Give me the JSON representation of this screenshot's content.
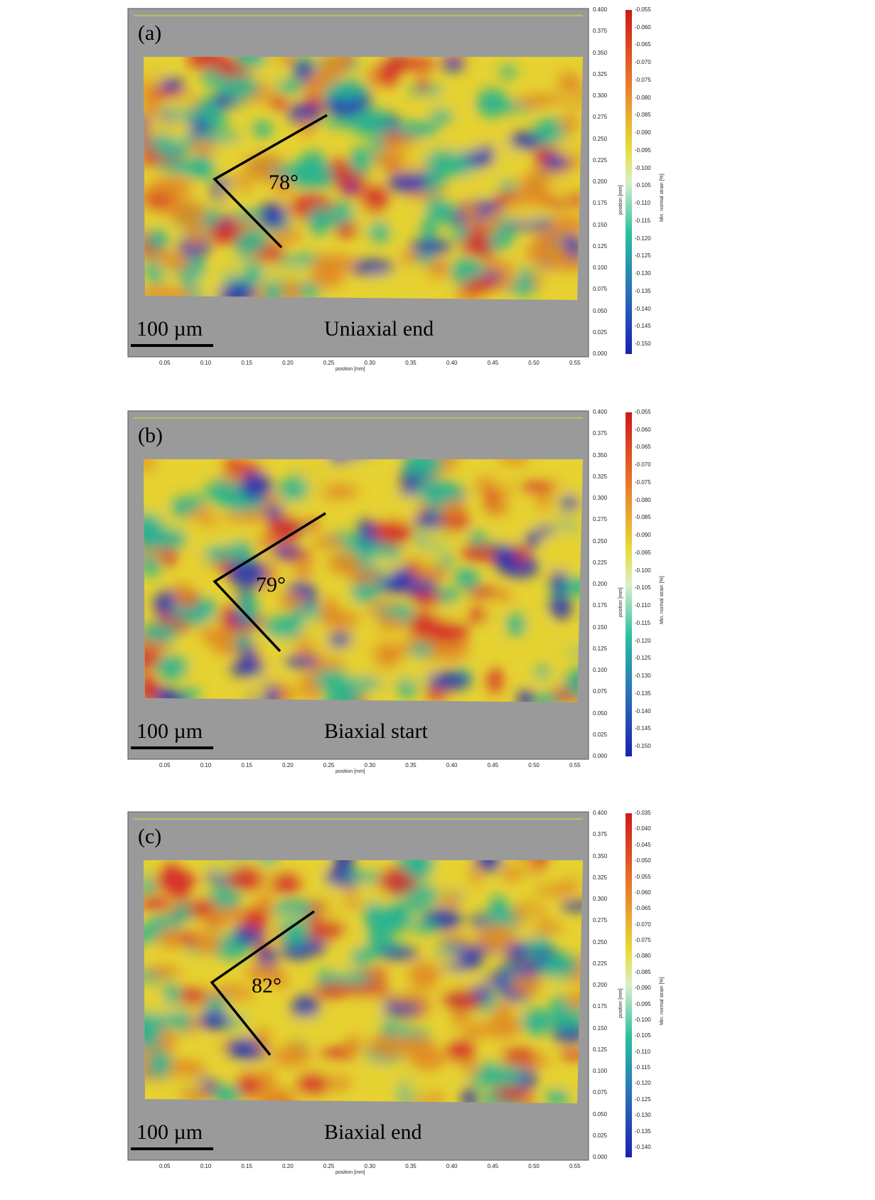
{
  "figure": {
    "panels": [
      {
        "id": "a",
        "label": "(a)",
        "angle_label": "78°",
        "caption": "Uniaxial end",
        "scale_bar": "100 µm",
        "y_axis_title": "position [mm]",
        "x_axis_title": "position [mm]",
        "y_ticks": [
          "0.400",
          "0.375",
          "0.350",
          "0.325",
          "0.300",
          "0.275",
          "0.250",
          "0.225",
          "0.200",
          "0.175",
          "0.150",
          "0.125",
          "0.100",
          "0.075",
          "0.050",
          "0.025",
          "0.000"
        ],
        "x_ticks": [
          "0.05",
          "0.10",
          "0.15",
          "0.20",
          "0.25",
          "0.30",
          "0.35",
          "0.40",
          "0.45",
          "0.50",
          "0.55"
        ],
        "colorbar_title": "Min. normal strain [%]",
        "colorbar_ticks": [
          "-0.055",
          "-0.060",
          "-0.065",
          "-0.070",
          "-0.075",
          "-0.080",
          "-0.085",
          "-0.090",
          "-0.095",
          "-0.100",
          "-0.105",
          "-0.110",
          "-0.115",
          "-0.120",
          "-0.125",
          "-0.130",
          "-0.135",
          "-0.140",
          "-0.145",
          "-0.150"
        ]
      },
      {
        "id": "b",
        "label": "(b)",
        "angle_label": "79°",
        "caption": "Biaxial start",
        "scale_bar": "100 µm",
        "y_axis_title": "position [mm]",
        "x_axis_title": "position [mm]",
        "y_ticks": [
          "0.400",
          "0.375",
          "0.350",
          "0.325",
          "0.300",
          "0.275",
          "0.250",
          "0.225",
          "0.200",
          "0.175",
          "0.150",
          "0.125",
          "0.100",
          "0.075",
          "0.050",
          "0.025",
          "0.000"
        ],
        "x_ticks": [
          "0.05",
          "0.10",
          "0.15",
          "0.20",
          "0.25",
          "0.30",
          "0.35",
          "0.40",
          "0.45",
          "0.50",
          "0.55"
        ],
        "colorbar_title": "Min. normal strain [%]",
        "colorbar_ticks": [
          "-0.055",
          "-0.060",
          "-0.065",
          "-0.070",
          "-0.075",
          "-0.080",
          "-0.085",
          "-0.090",
          "-0.095",
          "-0.100",
          "-0.105",
          "-0.110",
          "-0.115",
          "-0.120",
          "-0.125",
          "-0.130",
          "-0.135",
          "-0.140",
          "-0.145",
          "-0.150"
        ]
      },
      {
        "id": "c",
        "label": "(c)",
        "angle_label": "82°",
        "caption": "Biaxial end",
        "scale_bar": "100 µm",
        "y_axis_title": "position [mm]",
        "x_axis_title": "position [mm]",
        "y_ticks": [
          "0.400",
          "0.375",
          "0.350",
          "0.325",
          "0.300",
          "0.275",
          "0.250",
          "0.225",
          "0.200",
          "0.175",
          "0.150",
          "0.125",
          "0.100",
          "0.075",
          "0.050",
          "0.025",
          "0.000"
        ],
        "x_ticks": [
          "0.05",
          "0.10",
          "0.15",
          "0.20",
          "0.25",
          "0.30",
          "0.35",
          "0.40",
          "0.45",
          "0.50",
          "0.55"
        ],
        "colorbar_title": "Min. normal strain [%]",
        "colorbar_ticks": [
          "-0.035",
          "-0.040",
          "-0.045",
          "-0.050",
          "-0.055",
          "-0.060",
          "-0.065",
          "-0.070",
          "-0.075",
          "-0.080",
          "-0.085",
          "-0.090",
          "-0.095",
          "-0.100",
          "-0.105",
          "-0.110",
          "-0.115",
          "-0.120",
          "-0.125",
          "-0.130",
          "-0.135",
          "-0.140"
        ]
      }
    ],
    "colors": {
      "background_grey": "#9a9a9a",
      "high": "#d42a2a",
      "mid_high": "#e08a22",
      "mid": "#e6d232",
      "mid_low": "#26b392",
      "low": "#2632b6"
    }
  }
}
